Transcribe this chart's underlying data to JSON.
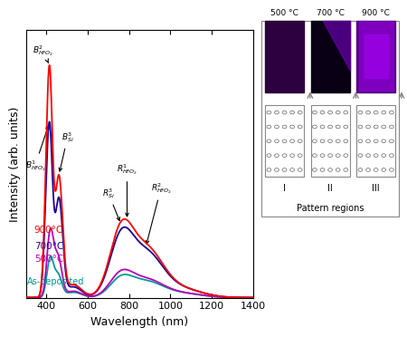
{
  "xlabel": "Wavelength (nm)",
  "ylabel": "Intensity (arb. units)",
  "xlim": [
    300,
    1400
  ],
  "background_color": "#ffffff",
  "line_colors": {
    "900C": "#ff0000",
    "700C": "#1a0099",
    "500C": "#bb00bb",
    "as_dep": "#009999"
  },
  "curve_labels": {
    "900C": "900°C",
    "700C": "700°C",
    "500C": "500°C",
    "as_dep": "As-deposited"
  },
  "inset_temperatures": [
    "500 °C",
    "700 °C",
    "900 °C"
  ],
  "inset_photo_colors_base": [
    "#2d0040",
    "#0a0015",
    "#5a008a"
  ],
  "inset_photo_colors_highlight": [
    "#2d0040",
    "#4a007a",
    "#8800cc"
  ],
  "inset_label": "Pattern regions",
  "inset_sublabels": [
    "I",
    "II",
    "III"
  ]
}
